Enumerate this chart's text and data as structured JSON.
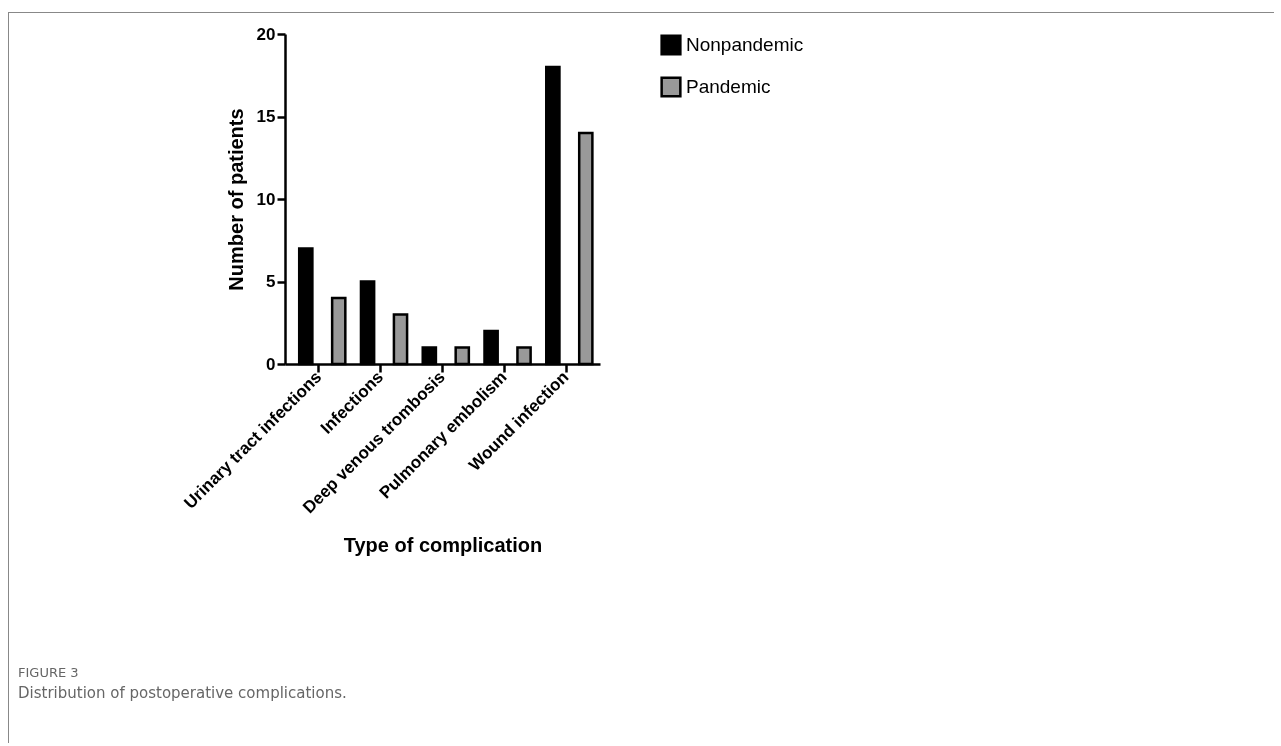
{
  "chart_data": {
    "type": "bar",
    "xlabel": "Type of complication",
    "ylabel": "Number of patients",
    "categories": [
      "Urinary tract infections",
      "Infections",
      "Deep venous trombosis",
      "Pulmonary embolism",
      "Wound infection"
    ],
    "series": [
      {
        "name": "Nonpandemic",
        "color": "#000000",
        "values": [
          7,
          5,
          1,
          2,
          18
        ]
      },
      {
        "name": "Pandemic",
        "color": "#999999",
        "values": [
          4,
          3,
          1,
          1,
          14
        ]
      }
    ],
    "ylim": [
      0,
      20
    ],
    "yticks": [
      0,
      5,
      10,
      15,
      20
    ],
    "grid": false,
    "legend": "top right",
    "annotations": [
      "FIGURE 3",
      "Distribution of postoperative complications."
    ]
  }
}
